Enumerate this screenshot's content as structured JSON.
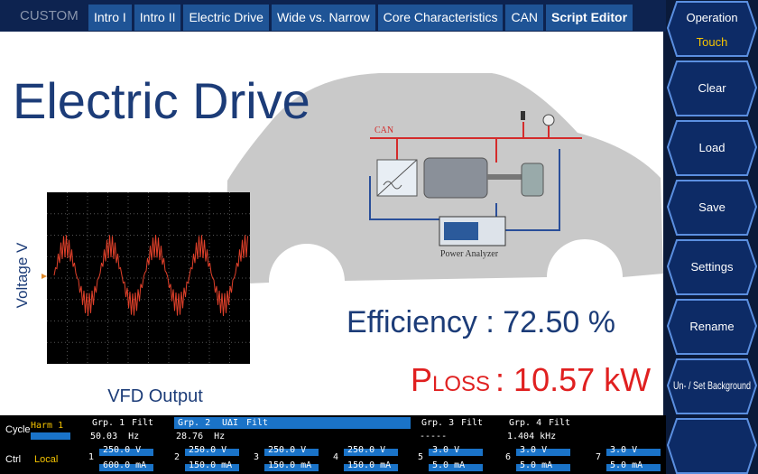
{
  "header": {
    "mode": "CUSTOM",
    "tabs": [
      "Intro I",
      "Intro II",
      "Electric Drive",
      "Wide vs. Narrow",
      "Core Characteristics",
      "CAN",
      "Script Editor"
    ]
  },
  "sidebar": {
    "buttons": [
      {
        "label": "Operation",
        "sub": "Touch"
      },
      {
        "label": "Clear"
      },
      {
        "label": "Load"
      },
      {
        "label": "Save"
      },
      {
        "label": "Settings"
      },
      {
        "label": "Rename"
      },
      {
        "label": "Un- / Set Background"
      }
    ]
  },
  "slide": {
    "title": "Electric Drive",
    "diagram": {
      "bus": "CAN",
      "device": "Power Analyzer"
    },
    "scope": {
      "y_label": "Voltage V",
      "caption": "VFD Output"
    },
    "efficiency": "Efficiency : 72.50 %",
    "loss": {
      "symbol": "P",
      "subscript": "LOSS",
      "text": ": 10.57 kW"
    }
  },
  "status": {
    "cycle": {
      "label": "Cycle",
      "value": "Harm 1"
    },
    "ctrl": {
      "label": "Ctrl",
      "value": "Local"
    },
    "groups": [
      {
        "name": "Grp. 1",
        "filter": "Filt",
        "reading": "50.03  Hz",
        "channels": [
          {
            "n": "1",
            "v": "250.0 V",
            "i": "600.0 mA"
          }
        ]
      },
      {
        "name": "Grp. 2",
        "tag": "UΔI",
        "filter": "Filt",
        "reading": "28.76  Hz",
        "channels": [
          {
            "n": "2",
            "v": "250.0 V",
            "i": "150.0 mA"
          },
          {
            "n": "3",
            "v": "250.0 V",
            "i": "150.0 mA"
          },
          {
            "n": "4",
            "v": "250.0 V",
            "i": "150.0 mA"
          }
        ]
      },
      {
        "name": "Grp. 3",
        "filter": "Filt",
        "reading": "-----",
        "channels": [
          {
            "n": "5",
            "v": "3.0 V",
            "i": "5.0 mA"
          }
        ]
      },
      {
        "name": "Grp. 4",
        "filter": "Filt",
        "reading": "1.404 kHz",
        "channels": [
          {
            "n": "6",
            "v": "3.0 V",
            "i": "5.0 mA"
          },
          {
            "n": "7",
            "v": "3.0 V",
            "i": "5.0 mA"
          }
        ]
      }
    ]
  }
}
